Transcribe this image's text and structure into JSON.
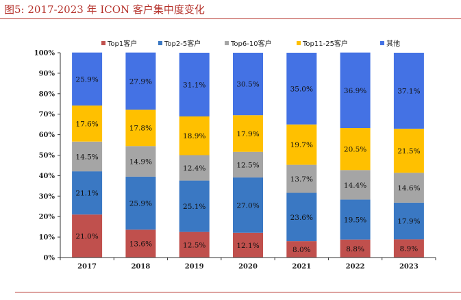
{
  "figure": {
    "title": "图5:   2017-2023 年 ICON 客户集中度变化"
  },
  "chart_data": {
    "type": "bar",
    "stacked": true,
    "percent": true,
    "categories": [
      "2017",
      "2018",
      "2019",
      "2020",
      "2021",
      "2022",
      "2023"
    ],
    "series": [
      {
        "name": "Top1客户",
        "color": "#c0504d",
        "values": [
          21.0,
          13.6,
          12.5,
          12.1,
          8.0,
          8.8,
          8.9
        ]
      },
      {
        "name": "Top2-5客户",
        "color": "#3a78c3",
        "values": [
          21.1,
          25.9,
          25.1,
          27.0,
          23.6,
          19.5,
          17.9
        ]
      },
      {
        "name": "Top6-10客户",
        "color": "#a5a5a5",
        "values": [
          14.5,
          14.9,
          12.4,
          12.5,
          13.7,
          14.4,
          14.6
        ]
      },
      {
        "name": "Top11-25客户",
        "color": "#ffc000",
        "values": [
          17.6,
          17.8,
          18.9,
          17.9,
          19.7,
          20.5,
          21.5
        ]
      },
      {
        "name": "其他",
        "color": "#4472e4",
        "values": [
          25.9,
          27.9,
          31.1,
          30.5,
          35.0,
          36.9,
          37.1
        ]
      }
    ],
    "ylim": [
      0,
      100
    ],
    "yticks": [
      "0%",
      "10%",
      "20%",
      "30%",
      "40%",
      "50%",
      "60%",
      "70%",
      "80%",
      "90%",
      "100%"
    ],
    "data_label_suffix": "%",
    "legend_position": "top",
    "grid": false
  }
}
